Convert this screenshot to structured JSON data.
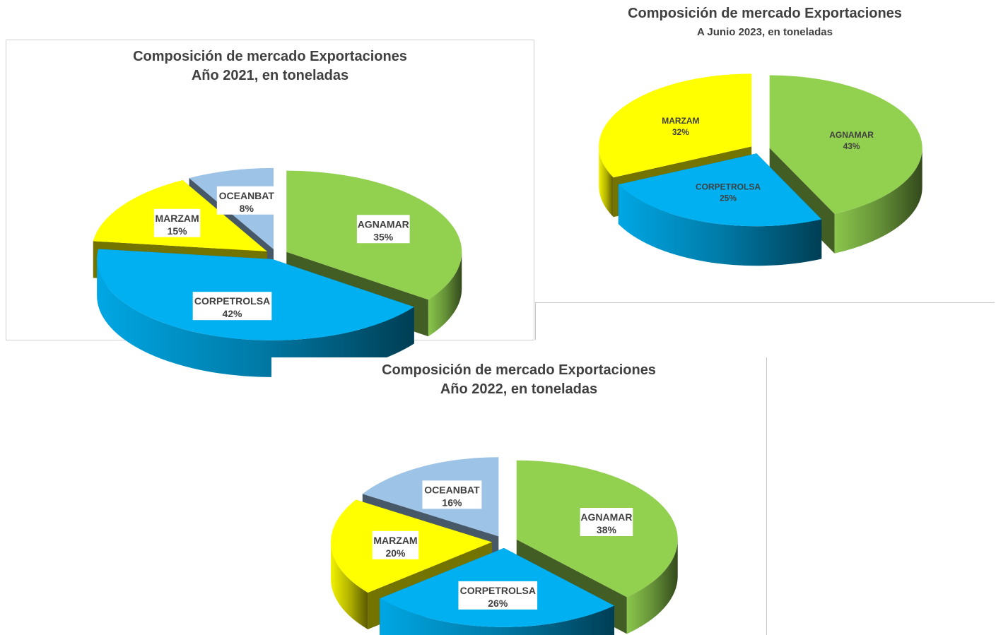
{
  "charts": [
    {
      "title": "Composición de mercado Exportaciones",
      "subtitle": "Año 2021, en toneladas",
      "chart_data": {
        "type": "pie",
        "categories": [
          "AGNAMAR",
          "CORPETROLSA",
          "MARZAM",
          "OCEANBAT"
        ],
        "values": [
          35,
          42,
          15,
          8
        ],
        "labels": [
          "35%",
          "42%",
          "15%",
          "8%"
        ],
        "colors": [
          "#92d050",
          "#00b0f0",
          "#ffff00",
          "#9dc3e6"
        ]
      }
    },
    {
      "title": "Composición de mercado Exportaciones",
      "subtitle": "A Junio 2023, en toneladas",
      "chart_data": {
        "type": "pie",
        "categories": [
          "AGNAMAR",
          "CORPETROLSA",
          "MARZAM"
        ],
        "values": [
          43,
          25,
          32
        ],
        "labels": [
          "43%",
          "25%",
          "32%"
        ],
        "colors": [
          "#92d050",
          "#00b0f0",
          "#ffff00"
        ]
      }
    },
    {
      "title": "Composición de mercado Exportaciones",
      "subtitle": "Año 2022, en toneladas",
      "chart_data": {
        "type": "pie",
        "categories": [
          "AGNAMAR",
          "CORPETROLSA",
          "MARZAM",
          "OCEANBAT"
        ],
        "values": [
          38,
          26,
          20,
          16
        ],
        "labels": [
          "38%",
          "26%",
          "20%",
          "16%"
        ],
        "colors": [
          "#92d050",
          "#00b0f0",
          "#ffff00",
          "#9dc3e6"
        ]
      }
    }
  ]
}
